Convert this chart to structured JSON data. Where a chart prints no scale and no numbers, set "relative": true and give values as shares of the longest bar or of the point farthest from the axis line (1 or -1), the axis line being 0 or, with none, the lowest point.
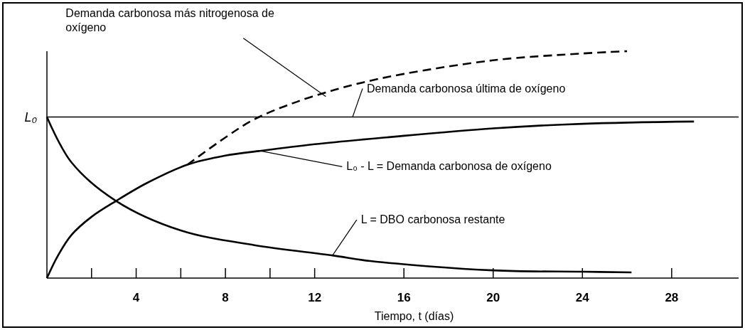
{
  "chart_data": {
    "type": "line",
    "relative": true,
    "xlabel": "Tiempo, t (días)",
    "xlim": [
      0,
      31
    ],
    "xticks": [
      {
        "value": 2,
        "label": null
      },
      4,
      {
        "value": 6,
        "label": null
      },
      8,
      {
        "value": 10,
        "label": null
      },
      12,
      16,
      20,
      24,
      28
    ],
    "series": [
      {
        "color": "#000000",
        "line_style": "solid",
        "x": [
          0,
          1.1,
          3.1,
          6,
          9.3,
          12.8,
          14.5,
          20,
          24,
          26.2
        ],
        "values": [
          0.71,
          0.51,
          0.34,
          0.21,
          0.145,
          0.1,
          0.075,
          0.034,
          0.028,
          0.025
        ]
      },
      {
        "color": "#000000",
        "line_style": "solid",
        "x": [
          0,
          0.5,
          1.1,
          2,
          3.1,
          4.5,
          6.3,
          8,
          9.5,
          12,
          15.2,
          20,
          24,
          29
        ],
        "values": [
          0,
          0.1,
          0.19,
          0.27,
          0.34,
          0.42,
          0.5,
          0.54,
          0.56,
          0.59,
          0.62,
          0.66,
          0.68,
          0.69
        ]
      },
      {
        "color": "#000000",
        "line_style": "dashed",
        "x": [
          6.3,
          8,
          9.3,
          11,
          12.9,
          14.5,
          16,
          20,
          24,
          26
        ],
        "values": [
          0.5,
          0.62,
          0.7,
          0.77,
          0.83,
          0.87,
          0.9,
          0.96,
          0.99,
          1
        ]
      }
    ],
    "ref_lines": [
      {
        "axis": "y",
        "value": 0.71,
        "label": "L₀"
      }
    ],
    "annotations": [
      {
        "text": "Demanda carbonosa más nitrogenosa de oxígeno",
        "x": 12.5,
        "y": 0.8
      },
      {
        "text": "Demanda carbonosa última de oxígeno",
        "x": 13.7,
        "y": 0.71
      },
      {
        "text": "L₀ - L = Demanda carbonosa de oxígeno",
        "x": 9.6,
        "y": 0.56
      },
      {
        "text": "L = DBO carbonosa restante",
        "x": 12.8,
        "y": 0.1
      }
    ]
  }
}
